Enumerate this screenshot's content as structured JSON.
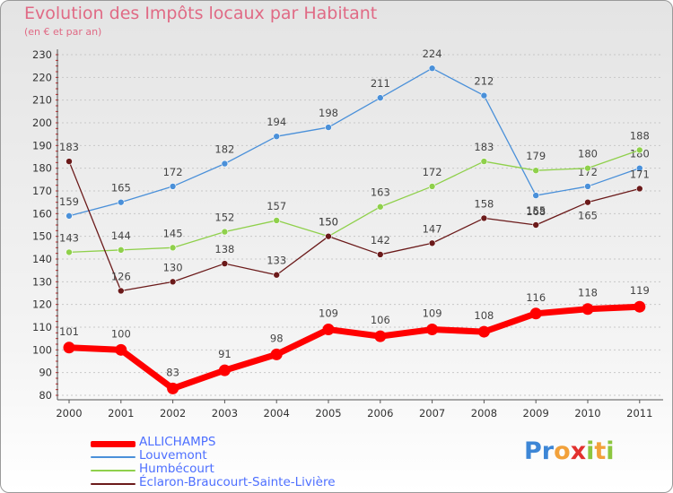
{
  "header": {
    "title": "Evolution des Impôts locaux par Habitant",
    "subtitle": "(en € et par an)"
  },
  "brand": {
    "text": "Proxiti",
    "letters": [
      {
        "ch": "P",
        "color": "#3d86d6"
      },
      {
        "ch": "r",
        "color": "#3d86d6"
      },
      {
        "ch": "o",
        "color": "#f2a13a"
      },
      {
        "ch": "x",
        "color": "#e2312f"
      },
      {
        "ch": "i",
        "color": "#8cc63f"
      },
      {
        "ch": "t",
        "color": "#f2a13a"
      },
      {
        "ch": "i",
        "color": "#8cc63f"
      }
    ]
  },
  "chart_data": {
    "type": "line",
    "title": "Evolution des Impôts locaux par Habitant",
    "subtitle": "(en € et par an)",
    "categories": [
      "2000",
      "2001",
      "2002",
      "2003",
      "2004",
      "2005",
      "2006",
      "2007",
      "2008",
      "2009",
      "2010",
      "2011"
    ],
    "ylim": [
      80,
      230
    ],
    "yticks": [
      80,
      90,
      100,
      110,
      120,
      130,
      140,
      150,
      160,
      170,
      180,
      190,
      200,
      210,
      220,
      230
    ],
    "grid": "horizontal",
    "legend_position": "bottom-left",
    "series": [
      {
        "name": "ALLICHAMPS",
        "color": "#ff0000",
        "values": [
          101,
          100,
          83,
          91,
          98,
          109,
          106,
          109,
          108,
          116,
          118,
          119
        ]
      },
      {
        "name": "Louvemont",
        "color": "#4a90d9",
        "values": [
          159,
          165,
          172,
          182,
          194,
          198,
          211,
          224,
          212,
          168,
          172,
          180
        ]
      },
      {
        "name": "Humbécourt",
        "color": "#8fd04b",
        "values": [
          143,
          144,
          145,
          152,
          157,
          150,
          163,
          172,
          183,
          179,
          180,
          188
        ]
      },
      {
        "name": "Éclaron-Braucourt-Sainte-Livière",
        "color": "#6b1a1a",
        "values": [
          183,
          126,
          130,
          138,
          133,
          150,
          142,
          147,
          158,
          155,
          165,
          171
        ]
      }
    ]
  }
}
